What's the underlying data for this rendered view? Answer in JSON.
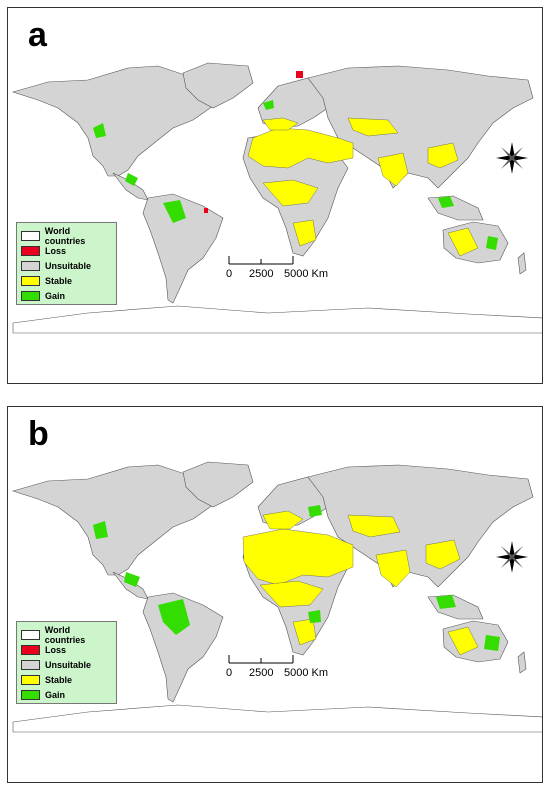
{
  "panels": [
    {
      "label": "a"
    },
    {
      "label": "b"
    }
  ],
  "legend": {
    "items": [
      {
        "label": "World countries",
        "color": "#ffffff"
      },
      {
        "label": "Loss",
        "color": "#e8001c"
      },
      {
        "label": "Unsuitable",
        "color": "#d4d4d4"
      },
      {
        "label": "Stable",
        "color": "#ffff00"
      },
      {
        "label": "Gain",
        "color": "#33dd00"
      }
    ]
  },
  "scale_bar": {
    "ticks": [
      "0",
      "2500",
      "5000 Km"
    ]
  },
  "compass": {
    "icon": "north-arrow-compass-icon"
  }
}
